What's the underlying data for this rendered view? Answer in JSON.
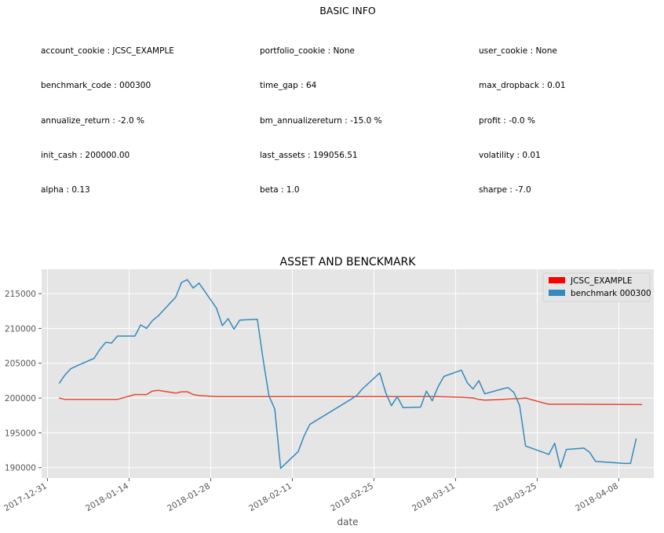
{
  "info": {
    "title": "BASIC INFO",
    "rows": [
      [
        "account_cookie : JCSC_EXAMPLE",
        "portfolio_cookie : None",
        "user_cookie : None"
      ],
      [
        "benchmark_code : 000300",
        "time_gap : 64",
        "max_dropback : 0.01"
      ],
      [
        "annualize_return : -2.0 %",
        "bm_annualizereturn : -15.0 %",
        "profit : -0.0 %"
      ],
      [
        "init_cash : 200000.00",
        "last_assets : 199056.51",
        "volatility : 0.01"
      ],
      [
        "alpha : 0.13",
        "beta : 1.0",
        "sharpe : -7.0"
      ]
    ]
  },
  "chart_data": {
    "type": "line",
    "title": "ASSET AND BENCKMARK",
    "xlabel": "date",
    "ylabel": "",
    "x_ticks": [
      "2017-12-31",
      "2018-01-14",
      "2018-01-28",
      "2018-02-11",
      "2018-02-25",
      "2018-03-11",
      "2018-03-25",
      "2018-04-08"
    ],
    "y_ticks": [
      190000,
      195000,
      200000,
      205000,
      210000,
      215000
    ],
    "xlim": [
      "2017-12-30",
      "2018-04-14"
    ],
    "ylim": [
      188500,
      218500
    ],
    "grid": true,
    "legend_position": "top-right",
    "colors": {
      "background": "#e5e5e5",
      "grid": "#ffffff",
      "asset": "#e24a33",
      "benchmark": "#348abd",
      "legend_asset": "#ff0000"
    },
    "series": [
      {
        "name": "JCSC_EXAMPLE",
        "color": "#e24a33",
        "points": [
          [
            "2018-01-02",
            200000
          ],
          [
            "2018-01-03",
            199800
          ],
          [
            "2018-01-04",
            199800
          ],
          [
            "2018-01-05",
            199800
          ],
          [
            "2018-01-08",
            199800
          ],
          [
            "2018-01-09",
            199800
          ],
          [
            "2018-01-10",
            199800
          ],
          [
            "2018-01-11",
            199800
          ],
          [
            "2018-01-12",
            199800
          ],
          [
            "2018-01-15",
            200500
          ],
          [
            "2018-01-16",
            200500
          ],
          [
            "2018-01-17",
            200500
          ],
          [
            "2018-01-18",
            201000
          ],
          [
            "2018-01-19",
            201100
          ],
          [
            "2018-01-22",
            200700
          ],
          [
            "2018-01-23",
            200900
          ],
          [
            "2018-01-24",
            200900
          ],
          [
            "2018-01-25",
            200500
          ],
          [
            "2018-01-26",
            200350
          ],
          [
            "2018-01-29",
            200200
          ],
          [
            "2018-02-05",
            200200
          ],
          [
            "2018-02-12",
            200200
          ],
          [
            "2018-02-26",
            200200
          ],
          [
            "2018-03-08",
            200200
          ],
          [
            "2018-03-12",
            200100
          ],
          [
            "2018-03-14",
            200000
          ],
          [
            "2018-03-15",
            199800
          ],
          [
            "2018-03-16",
            199700
          ],
          [
            "2018-03-19",
            199800
          ],
          [
            "2018-03-21",
            199900
          ],
          [
            "2018-03-22",
            199900
          ],
          [
            "2018-03-23",
            200000
          ],
          [
            "2018-03-26",
            199300
          ],
          [
            "2018-03-27",
            199100
          ],
          [
            "2018-04-02",
            199100
          ],
          [
            "2018-04-12",
            199056
          ]
        ]
      },
      {
        "name": "benchmark 000300",
        "color": "#348abd",
        "points": [
          [
            "2018-01-02",
            202100
          ],
          [
            "2018-01-03",
            203300
          ],
          [
            "2018-01-04",
            204200
          ],
          [
            "2018-01-05",
            204600
          ],
          [
            "2018-01-08",
            205700
          ],
          [
            "2018-01-09",
            207000
          ],
          [
            "2018-01-10",
            208000
          ],
          [
            "2018-01-11",
            207900
          ],
          [
            "2018-01-12",
            208900
          ],
          [
            "2018-01-15",
            208900
          ],
          [
            "2018-01-16",
            210500
          ],
          [
            "2018-01-17",
            210000
          ],
          [
            "2018-01-18",
            211100
          ],
          [
            "2018-01-19",
            211800
          ],
          [
            "2018-01-22",
            214500
          ],
          [
            "2018-01-23",
            216600
          ],
          [
            "2018-01-24",
            217000
          ],
          [
            "2018-01-25",
            215800
          ],
          [
            "2018-01-26",
            216500
          ],
          [
            "2018-01-29",
            212900
          ],
          [
            "2018-01-30",
            210400
          ],
          [
            "2018-01-31",
            211400
          ],
          [
            "2018-02-01",
            209900
          ],
          [
            "2018-02-02",
            211200
          ],
          [
            "2018-02-05",
            211300
          ],
          [
            "2018-02-06",
            205500
          ],
          [
            "2018-02-07",
            200300
          ],
          [
            "2018-02-08",
            198400
          ],
          [
            "2018-02-09",
            189900
          ],
          [
            "2018-02-12",
            192300
          ],
          [
            "2018-02-13",
            194500
          ],
          [
            "2018-02-14",
            196200
          ],
          [
            "2018-02-22",
            200300
          ],
          [
            "2018-02-23",
            201300
          ],
          [
            "2018-02-26",
            203600
          ],
          [
            "2018-02-27",
            200800
          ],
          [
            "2018-02-28",
            198900
          ],
          [
            "2018-03-01",
            200200
          ],
          [
            "2018-03-02",
            198600
          ],
          [
            "2018-03-05",
            198700
          ],
          [
            "2018-03-06",
            201000
          ],
          [
            "2018-03-07",
            199600
          ],
          [
            "2018-03-08",
            201600
          ],
          [
            "2018-03-09",
            203100
          ],
          [
            "2018-03-12",
            204000
          ],
          [
            "2018-03-13",
            202200
          ],
          [
            "2018-03-14",
            201300
          ],
          [
            "2018-03-15",
            202500
          ],
          [
            "2018-03-16",
            200600
          ],
          [
            "2018-03-19",
            201300
          ],
          [
            "2018-03-20",
            201500
          ],
          [
            "2018-03-21",
            200800
          ],
          [
            "2018-03-22",
            198900
          ],
          [
            "2018-03-23",
            193100
          ],
          [
            "2018-03-26",
            192200
          ],
          [
            "2018-03-27",
            191900
          ],
          [
            "2018-03-28",
            193500
          ],
          [
            "2018-03-29",
            190000
          ],
          [
            "2018-03-30",
            192600
          ],
          [
            "2018-04-02",
            192800
          ],
          [
            "2018-04-03",
            192200
          ],
          [
            "2018-04-04",
            190900
          ],
          [
            "2018-04-09",
            190600
          ],
          [
            "2018-04-10",
            190600
          ],
          [
            "2018-04-11",
            194200
          ]
        ]
      }
    ]
  }
}
